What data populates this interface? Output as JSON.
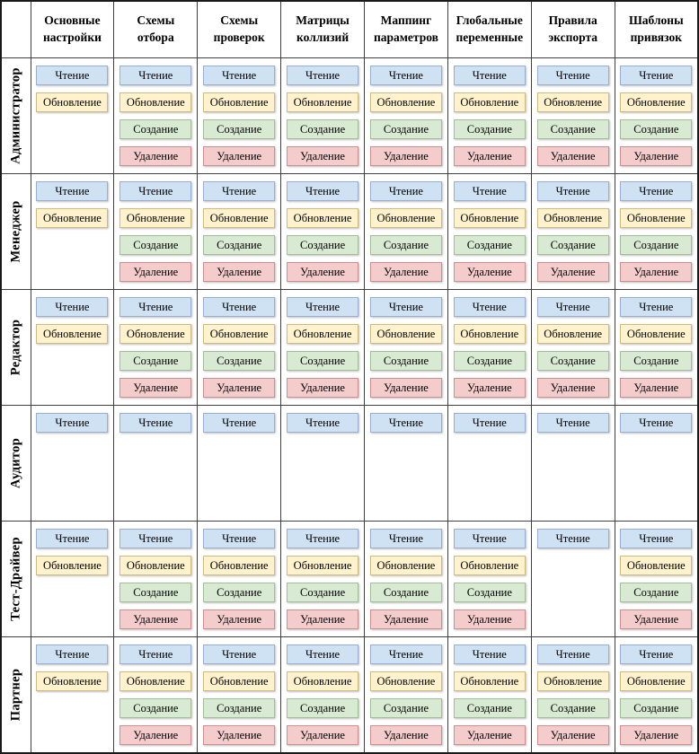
{
  "table": {
    "columns": [
      "Основные настройки",
      "Схемы отбора",
      "Схемы проверок",
      "Матрицы коллизий",
      "Маппинг параметров",
      "Глобальные переменные",
      "Правила экспорта",
      "Шаблоны привязок"
    ],
    "slot_order": [
      "read",
      "update",
      "create",
      "delete"
    ],
    "permissions": {
      "read": {
        "label": "Чтение",
        "bg": "#cfe2f3",
        "border": "#9aafcd"
      },
      "update": {
        "label": "Обновление",
        "bg": "#fff2cc",
        "border": "#cdba7e"
      },
      "create": {
        "label": "Создание",
        "bg": "#d9ead3",
        "border": "#a3bd9b"
      },
      "delete": {
        "label": "Удаление",
        "bg": "#f4cccc",
        "border": "#cc8f8f"
      }
    },
    "grid": [
      {
        "role": "Администратор",
        "cells": [
          [
            "read",
            "update"
          ],
          [
            "read",
            "update",
            "create",
            "delete"
          ],
          [
            "read",
            "update",
            "create",
            "delete"
          ],
          [
            "read",
            "update",
            "create",
            "delete"
          ],
          [
            "read",
            "update",
            "create",
            "delete"
          ],
          [
            "read",
            "update",
            "create",
            "delete"
          ],
          [
            "read",
            "update",
            "create",
            "delete"
          ],
          [
            "read",
            "update",
            "create",
            "delete"
          ]
        ]
      },
      {
        "role": "Менеджер",
        "cells": [
          [
            "read",
            "update"
          ],
          [
            "read",
            "update",
            "create",
            "delete"
          ],
          [
            "read",
            "update",
            "create",
            "delete"
          ],
          [
            "read",
            "update",
            "create",
            "delete"
          ],
          [
            "read",
            "update",
            "create",
            "delete"
          ],
          [
            "read",
            "update",
            "create",
            "delete"
          ],
          [
            "read",
            "update",
            "create",
            "delete"
          ],
          [
            "read",
            "update",
            "create",
            "delete"
          ]
        ]
      },
      {
        "role": "Редактор",
        "cells": [
          [
            "read",
            "update"
          ],
          [
            "read",
            "update",
            "create",
            "delete"
          ],
          [
            "read",
            "update",
            "create",
            "delete"
          ],
          [
            "read",
            "update",
            "create",
            "delete"
          ],
          [
            "read",
            "update",
            "create",
            "delete"
          ],
          [
            "read",
            "update",
            "create",
            "delete"
          ],
          [
            "read",
            "update",
            "create",
            "delete"
          ],
          [
            "read",
            "update",
            "create",
            "delete"
          ]
        ]
      },
      {
        "role": "Аудитор",
        "cells": [
          [
            "read"
          ],
          [
            "read"
          ],
          [
            "read"
          ],
          [
            "read"
          ],
          [
            "read"
          ],
          [
            "read"
          ],
          [
            "read"
          ],
          [
            "read"
          ]
        ]
      },
      {
        "role": "Тест-Драйвер",
        "cells": [
          [
            "read",
            "update"
          ],
          [
            "read",
            "update",
            "create",
            "delete"
          ],
          [
            "read",
            "update",
            "create",
            "delete"
          ],
          [
            "read",
            "update",
            "create",
            "delete"
          ],
          [
            "read",
            "update",
            "create",
            "delete"
          ],
          [
            "read",
            "update",
            "create",
            "delete"
          ],
          [
            "read"
          ],
          [
            "read",
            "update",
            "create",
            "delete"
          ]
        ]
      },
      {
        "role": "Партнер",
        "cells": [
          [
            "read",
            "update"
          ],
          [
            "read",
            "update",
            "create",
            "delete"
          ],
          [
            "read",
            "update",
            "create",
            "delete"
          ],
          [
            "read",
            "update",
            "create",
            "delete"
          ],
          [
            "read",
            "update",
            "create",
            "delete"
          ],
          [
            "read",
            "update",
            "create",
            "delete"
          ],
          [
            "read",
            "update",
            "create",
            "delete"
          ],
          [
            "read",
            "update",
            "create",
            "delete"
          ]
        ]
      }
    ]
  }
}
